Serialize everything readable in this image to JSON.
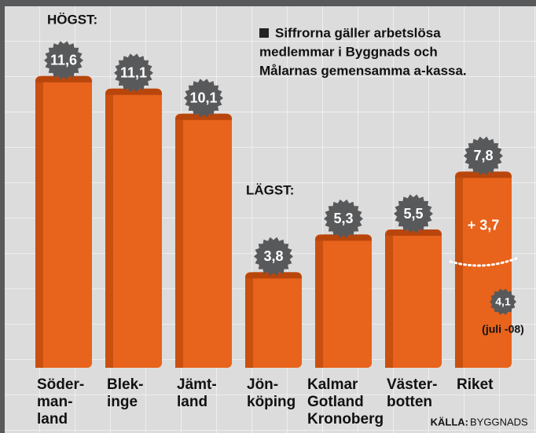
{
  "chart_data": {
    "type": "bar",
    "categories": [
      [
        "Söder-",
        "man-",
        "land"
      ],
      [
        "Blek-",
        "inge"
      ],
      [
        "Jämt-",
        "land"
      ],
      [
        "Jön-",
        "köping"
      ],
      [
        "Kalmar",
        "Gotland",
        "Kronoberg"
      ],
      [
        "Väster-",
        "botten"
      ],
      [
        "Riket"
      ]
    ],
    "values": [
      11.6,
      11.1,
      10.1,
      3.8,
      5.3,
      5.5,
      7.8
    ],
    "value_labels": [
      "11,6",
      "11,1",
      "10,1",
      "3,8",
      "5,3",
      "5,5",
      "7,8"
    ],
    "color": "#e8631c",
    "badge_color": "#58595b",
    "labels": {
      "high": "HÖGST:",
      "low": "LÄGST:"
    },
    "note": [
      "Siffrorna gäller arbetslösa",
      "medlemmar i Byggnads och",
      "Målarnas gemensamma a-kassa."
    ],
    "annotations": {
      "rise": {
        "value": 3.7,
        "label": "+ 3,7"
      },
      "july": {
        "value": 4.1,
        "label": "4,1"
      },
      "july_note": "(juli -08)"
    },
    "source_label": "KÄLLA:",
    "source": "BYGGNADS"
  }
}
